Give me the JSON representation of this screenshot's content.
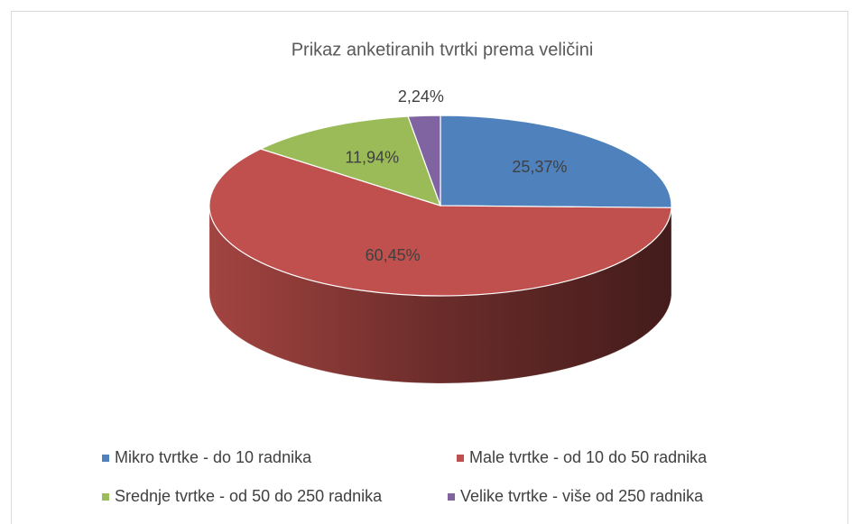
{
  "chart_data": {
    "type": "pie",
    "title": "Prikaz anketiranih tvrtki prema veličini",
    "categories": [
      "Mikro tvrtke - do 10 radnika",
      "Male tvrtke - od 10 do 50 radnika",
      "Srednje tvrtke - od 50 do 250 radnika",
      "Velike tvrtke - više od 250 radnika"
    ],
    "values": [
      25.37,
      60.45,
      11.94,
      2.24
    ],
    "value_labels": [
      "25,37%",
      "60,45%",
      "11,94%",
      "2,24%"
    ],
    "colors": [
      "#4f81bd",
      "#c0504d",
      "#9bbb59",
      "#8064a2"
    ],
    "legend": "bottom"
  }
}
